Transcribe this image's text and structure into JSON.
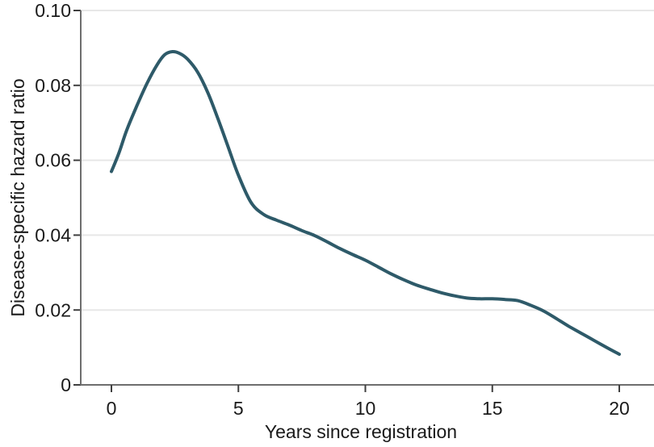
{
  "chart_data": {
    "type": "line",
    "title": "",
    "xlabel": "Years since registration",
    "ylabel": "Disease-specific hazard ratio",
    "xlim": [
      0,
      20
    ],
    "ylim": [
      0,
      0.1
    ],
    "x_ticks": [
      0,
      5,
      10,
      15,
      20
    ],
    "x_tick_labels": [
      "0",
      "5",
      "10",
      "15",
      "20"
    ],
    "y_ticks": [
      0,
      0.02,
      0.04,
      0.06,
      0.08,
      0.1
    ],
    "y_tick_labels": [
      "0",
      "0.02",
      "0.04",
      "0.06",
      "0.08",
      "0.10"
    ],
    "grid": "horizontal-only",
    "legend": "none",
    "series": [
      {
        "name": "Disease-specific hazard ratio",
        "color": "#2e5a69",
        "x": [
          0,
          0.3,
          0.6,
          1,
          1.4,
          1.8,
          2.1,
          2.4,
          2.7,
          3,
          3.4,
          3.8,
          4.2,
          4.6,
          5,
          5.5,
          6,
          6.5,
          7,
          7.5,
          8,
          8.5,
          9,
          9.5,
          10,
          10.5,
          11,
          11.5,
          12,
          12.5,
          13,
          13.5,
          14,
          14.5,
          15,
          15.5,
          16,
          16.5,
          17,
          17.5,
          18,
          18.5,
          19,
          19.5,
          20
        ],
        "y": [
          0.057,
          0.062,
          0.068,
          0.0745,
          0.0805,
          0.0855,
          0.0882,
          0.089,
          0.0885,
          0.087,
          0.0835,
          0.078,
          0.071,
          0.0635,
          0.056,
          0.0487,
          0.0455,
          0.044,
          0.0427,
          0.0412,
          0.0399,
          0.0382,
          0.0364,
          0.0348,
          0.0333,
          0.0315,
          0.0297,
          0.0281,
          0.0267,
          0.0256,
          0.0246,
          0.0238,
          0.0232,
          0.023,
          0.023,
          0.0228,
          0.0225,
          0.0213,
          0.0198,
          0.0178,
          0.0157,
          0.0138,
          0.0119,
          0.01,
          0.0082
        ]
      }
    ]
  },
  "colors": {
    "curve": "#2e5a69",
    "axis_line": "#6e6e6e",
    "tick_mark": "#3f3f3f",
    "gridline": "#e7e7e7",
    "text": "#1a1a1a",
    "background": "#ffffff"
  }
}
